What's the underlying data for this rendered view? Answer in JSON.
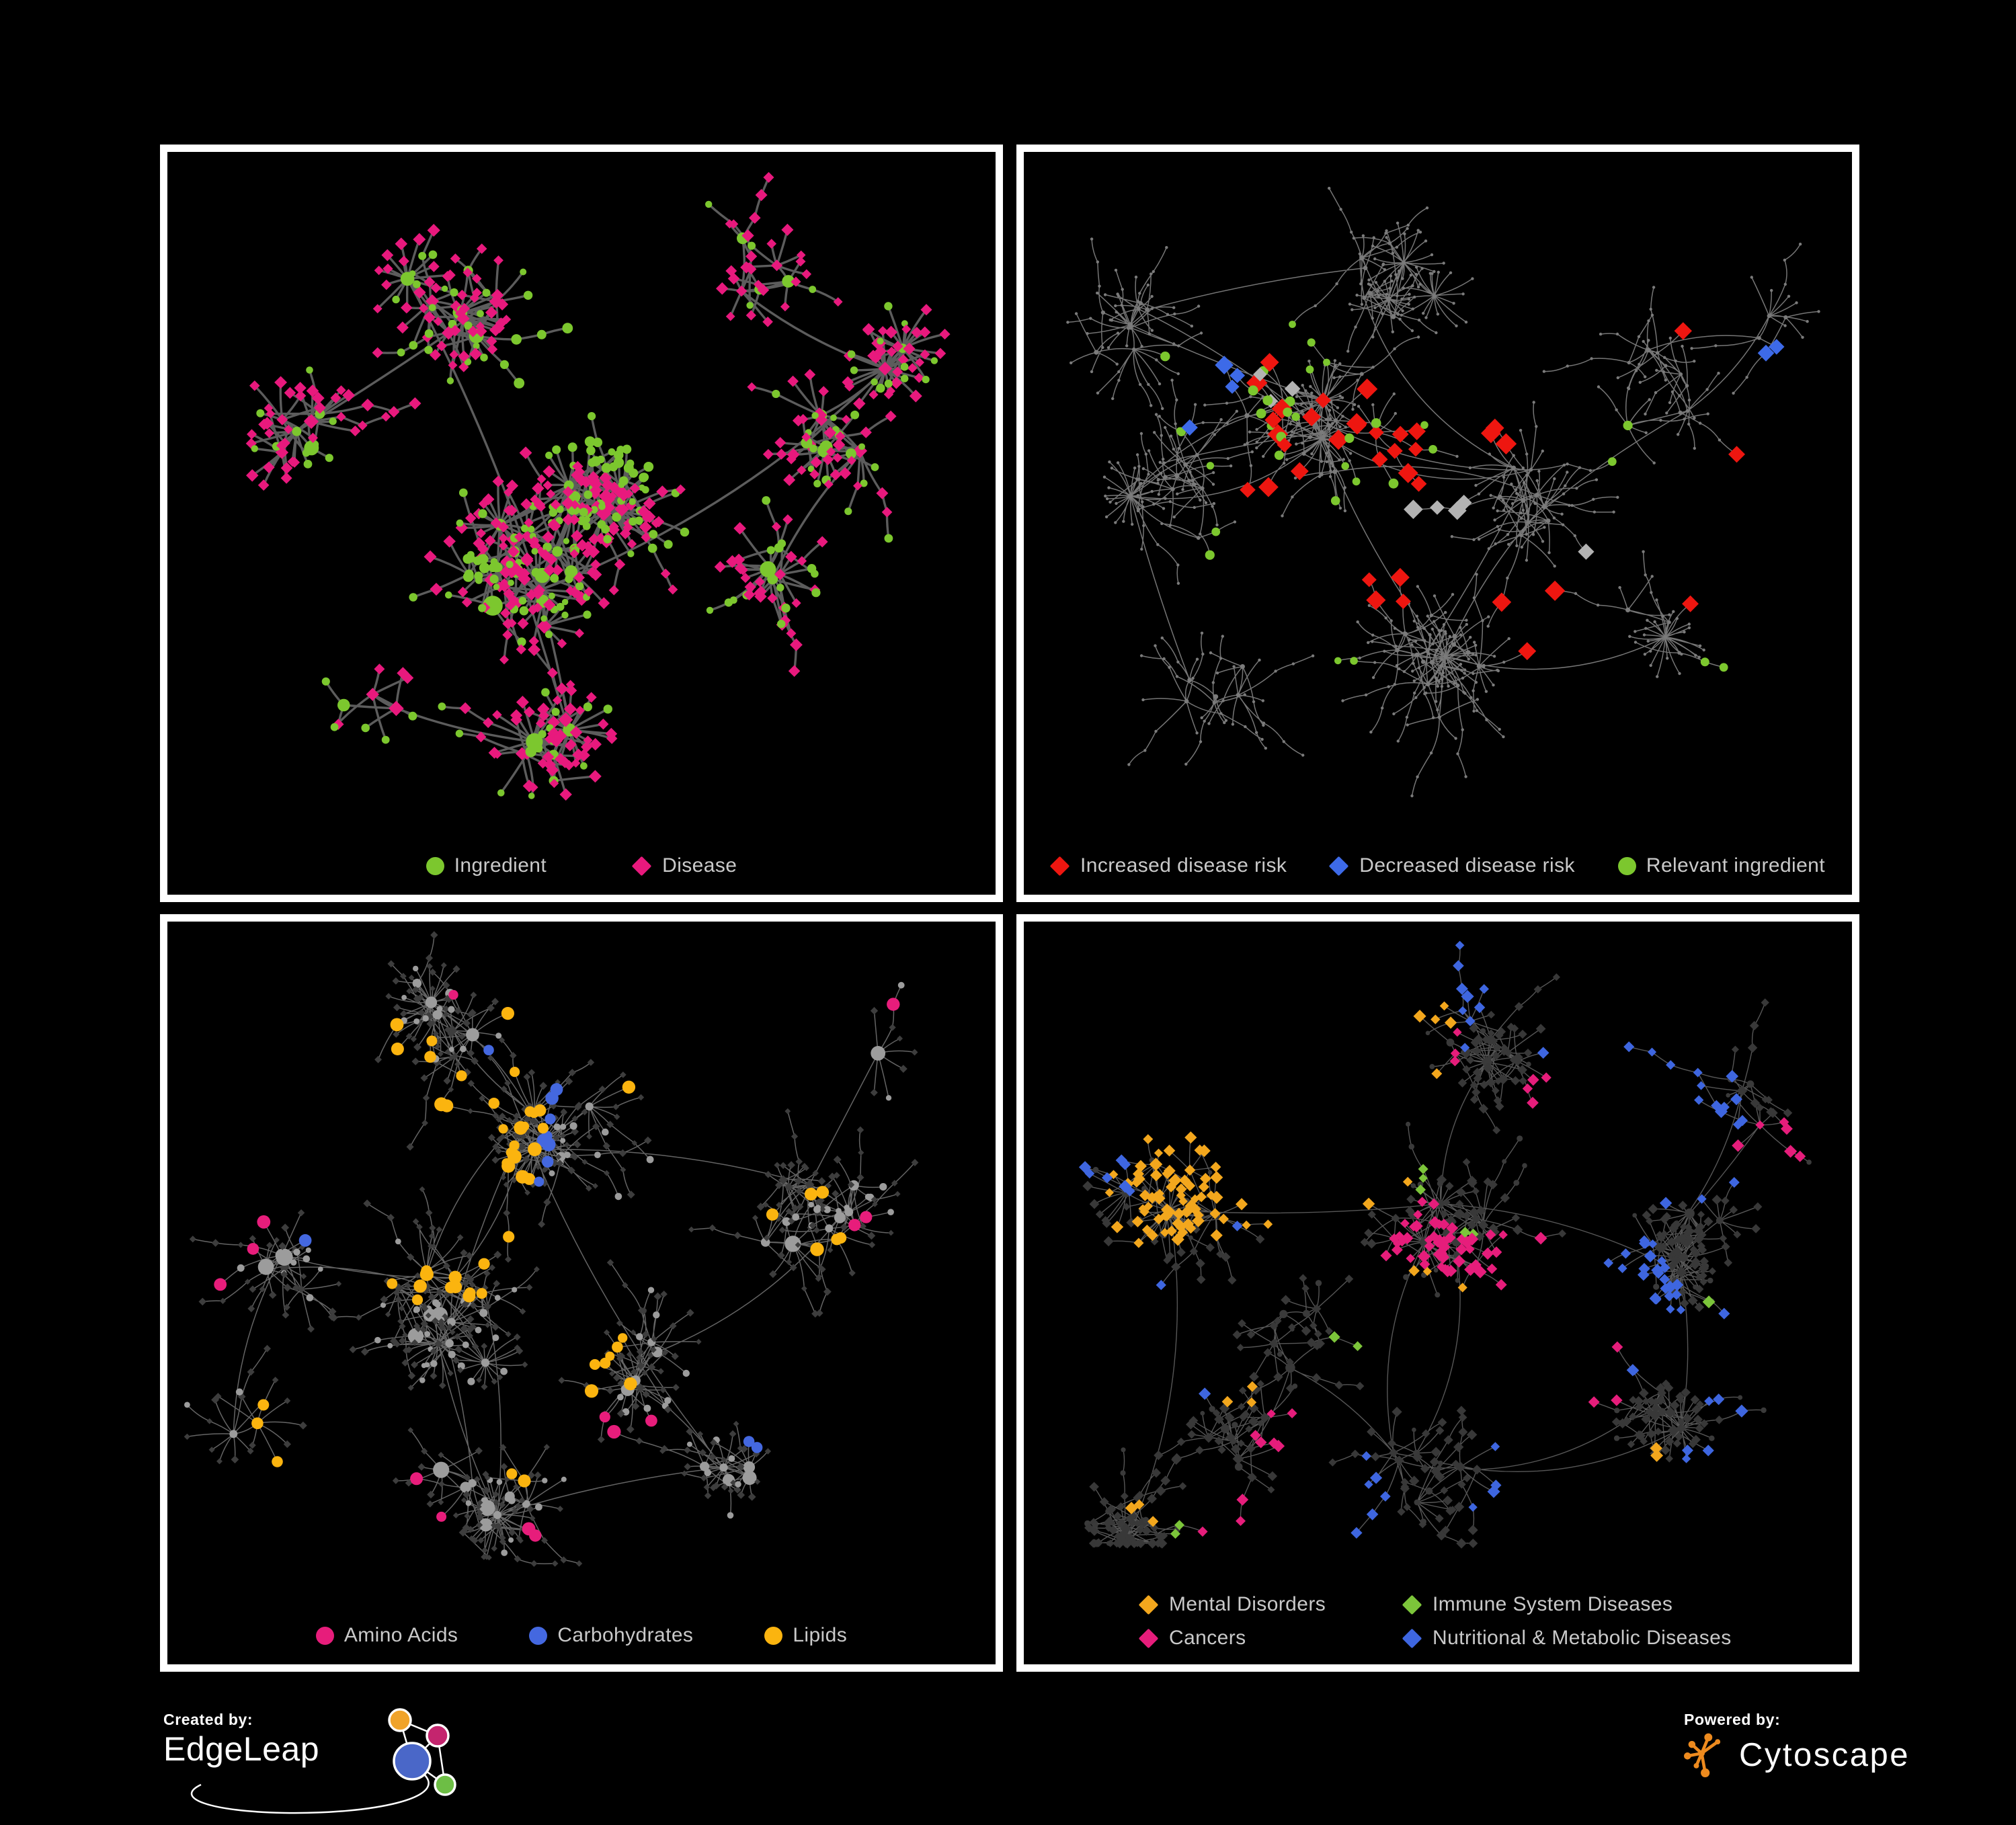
{
  "figure": {
    "background": "#000000",
    "panel_border_color": "#ffffff",
    "legend_text_color": "#C9C9C9"
  },
  "footer": {
    "created_by_label": "Created by:",
    "left_brand": "EdgeLeap",
    "powered_by_label": "Powered by:",
    "right_brand": "Cytoscape",
    "cytoscape_icon_color": "#ED8A1E",
    "edgeleap_logo_colors": [
      "#F0A32A",
      "#C4256E",
      "#4A67C8",
      "#6DBE45"
    ]
  },
  "chart_data": [
    {
      "id": "ingredient-disease-network",
      "type": "network",
      "position": "top-left",
      "legend": [
        {
          "label": "Ingredient",
          "shape": "circle",
          "color": "#7CC72E"
        },
        {
          "label": "Disease",
          "shape": "diamond",
          "color": "#E8197D"
        }
      ],
      "style": {
        "edge_color": "#646464",
        "edge_width": 3.4,
        "edge_opacity": 0.92,
        "curve": 0.13
      },
      "gen": {
        "seed": 101,
        "hubs": 88,
        "extra": 0.3,
        "leafMin": 2,
        "leafMax": 8,
        "leafR": 52,
        "chainProb": 0.1,
        "bursts": 7,
        "maxY": 958,
        "clusters": [
          [
            520,
            640,
            110,
            3
          ],
          [
            640,
            520,
            85,
            2
          ],
          [
            430,
            230,
            120,
            1.6
          ],
          [
            890,
            200,
            90,
            1
          ],
          [
            980,
            430,
            80,
            1
          ],
          [
            195,
            430,
            80,
            1
          ],
          [
            300,
            800,
            90,
            1
          ],
          [
            570,
            890,
            70,
            1
          ],
          [
            900,
            630,
            70,
            0.8
          ],
          [
            1100,
            300,
            60,
            0.6
          ]
        ]
      },
      "nodes": {
        "mode": "colored",
        "circle_color": "#7CC72E",
        "diamond_color": "#E8197D",
        "hub_circle_prob": 0.6,
        "leaf_circle_prob": 0.28,
        "hub_r": [
          7,
          15
        ],
        "leaf_r": 5.5,
        "hub_d": 9.5,
        "leaf_d": 8
      },
      "highlights": [
        {
          "target": "any",
          "shape": "circle",
          "color": "#7CC72E",
          "size": 6.5,
          "spots": [
            [
              640,
              330,
              55,
              22
            ],
            [
              470,
              620,
              50,
              16
            ],
            [
              700,
              390,
              35,
              8
            ]
          ]
        }
      ]
    },
    {
      "id": "disease-risk-network",
      "type": "network",
      "position": "top-right",
      "legend": [
        {
          "label": "Increased disease risk",
          "shape": "diamond",
          "color": "#EE1610"
        },
        {
          "label": "Decreased disease risk",
          "shape": "diamond",
          "color": "#3D6AE8"
        },
        {
          "label": "Relevant ingredient",
          "shape": "circle",
          "color": "#7CC72E"
        }
      ],
      "style": {
        "edge_color": "#8A8A8A",
        "edge_width": 1.5,
        "edge_opacity": 0.85,
        "curve": 0.3
      },
      "gen": {
        "seed": 202,
        "hubs": 95,
        "extra": 0.28,
        "leafMin": 2,
        "leafMax": 7,
        "leafR": 48,
        "chainProb": 0.42,
        "bursts": 8,
        "maxY": 958,
        "clusters": [
          [
            430,
            400,
            130,
            2.5
          ],
          [
            560,
            180,
            120,
            1.5
          ],
          [
            220,
            480,
            100,
            1
          ],
          [
            950,
            350,
            110,
            1.5
          ],
          [
            620,
            760,
            110,
            1.5
          ],
          [
            300,
            800,
            80,
            0.8
          ],
          [
            1100,
            280,
            70,
            0.7
          ],
          [
            950,
            700,
            90,
            1
          ],
          [
            750,
            520,
            90,
            1
          ],
          [
            150,
            250,
            70,
            0.6
          ]
        ]
      },
      "nodes": {
        "mode": "dots",
        "dot_color": "#7B7B7B",
        "hub_r": [
          2.6,
          3.8
        ],
        "leaf_r": 2.2
      },
      "highlights": [
        {
          "target": "any",
          "shape": "diamond",
          "color": "#EE1610",
          "size": 13,
          "spots": [
            [
              420,
              390,
              110,
              13
            ],
            [
              560,
              450,
              90,
              8
            ],
            [
              700,
              420,
              55,
              3
            ],
            [
              770,
              700,
              55,
              3
            ],
            [
              520,
              640,
              60,
              4
            ],
            [
              985,
              265,
              12,
              1
            ],
            [
              1060,
              560,
              45,
              2
            ],
            [
              340,
              520,
              30,
              2
            ]
          ]
        },
        {
          "target": "any",
          "shape": "diamond",
          "color": "#3D6AE8",
          "size": 13,
          "spots": [
            [
              310,
              330,
              40,
              3
            ],
            [
              1095,
              300,
              28,
              2
            ],
            [
              240,
              395,
              18,
              1
            ]
          ]
        },
        {
          "target": "any",
          "shape": "diamond",
          "color": "#B3B3B3",
          "size": 12,
          "spots": [
            [
              365,
              350,
              55,
              3
            ],
            [
              600,
              520,
              80,
              4
            ],
            [
              830,
              625,
              35,
              1
            ]
          ]
        },
        {
          "target": "any",
          "shape": "circle",
          "color": "#7CC72E",
          "size": 6.2,
          "spots": [
            [
              380,
              360,
              115,
              15
            ],
            [
              540,
              480,
              95,
              8
            ],
            [
              250,
              420,
              60,
              3
            ],
            [
              880,
              420,
              35,
              2
            ],
            [
              1140,
              880,
              60,
              2
            ],
            [
              460,
              760,
              45,
              2
            ],
            [
              300,
              640,
              40,
              2
            ],
            [
              200,
              300,
              30,
              1
            ]
          ]
        }
      ]
    },
    {
      "id": "ingredient-groups-network",
      "type": "network",
      "position": "bottom-left",
      "legend": [
        {
          "label": "Amino Acids",
          "shape": "circle",
          "color": "#E71D7B"
        },
        {
          "label": "Carbohydrates",
          "shape": "circle",
          "color": "#4468E0"
        },
        {
          "label": "Lipids",
          "shape": "circle",
          "color": "#FBB40F"
        }
      ],
      "style": {
        "edge_color": "#A6A6A6",
        "edge_width": 1.5,
        "edge_opacity": 0.6,
        "curve": 0.22
      },
      "gen": {
        "seed": 303,
        "hubs": 88,
        "extra": 0.34,
        "leafMin": 2,
        "leafMax": 8,
        "leafR": 50,
        "chainProb": 0.16,
        "bursts": 7,
        "maxY": 955,
        "clusters": [
          [
            420,
            560,
            120,
            2.5
          ],
          [
            560,
            330,
            90,
            1.8
          ],
          [
            380,
            150,
            110,
            1
          ],
          [
            170,
            520,
            70,
            0.8
          ],
          [
            700,
            650,
            60,
            1
          ],
          [
            950,
            420,
            90,
            1.2
          ],
          [
            480,
            880,
            100,
            1.2
          ],
          [
            1050,
            210,
            80,
            0.7
          ],
          [
            820,
            820,
            70,
            0.7
          ],
          [
            120,
            760,
            60,
            0.5
          ]
        ]
      },
      "nodes": {
        "mode": "colored",
        "circle_color": "#9C9C9C",
        "diamond_color": "#3D3D3D",
        "hub_circle_prob": 0.8,
        "leaf_circle_prob": 0.22,
        "hub_r": [
          6,
          13
        ],
        "leaf_r": 4.5,
        "hub_d": 6,
        "leaf_d": 5
      },
      "highlights": [
        {
          "target": "circle",
          "shape": "circle",
          "color": "#FBB40F",
          "size": 8.5,
          "spots": [
            [
              500,
              300,
              70,
              20
            ],
            [
              430,
              530,
              90,
              13
            ],
            [
              610,
              620,
              45,
              7
            ],
            [
              360,
              180,
              60,
              4
            ],
            [
              880,
              330,
              60,
              3
            ],
            [
              240,
              760,
              50,
              3
            ],
            [
              520,
              845,
              40,
              2
            ],
            [
              1090,
              620,
              50,
              3
            ],
            [
              680,
              90,
              40,
              2
            ]
          ]
        },
        {
          "target": "circle",
          "shape": "circle",
          "color": "#E71D7B",
          "size": 8.5,
          "spots": [
            [
              120,
              420,
              40,
              2
            ],
            [
              90,
              600,
              30,
              1
            ],
            [
              300,
              885,
              55,
              2
            ],
            [
              700,
              790,
              50,
              3
            ],
            [
              1020,
              480,
              60,
              2
            ],
            [
              470,
              60,
              30,
              1
            ],
            [
              1130,
              165,
              40,
              1
            ],
            [
              660,
              950,
              40,
              2
            ]
          ]
        },
        {
          "target": "circle",
          "shape": "circle",
          "color": "#4468E0",
          "size": 8.5,
          "spots": [
            [
              480,
              330,
              45,
              6
            ],
            [
              545,
              270,
              30,
              3
            ],
            [
              1030,
              700,
              40,
              2
            ],
            [
              160,
              290,
              20,
              1
            ]
          ]
        }
      ]
    },
    {
      "id": "disease-groups-network",
      "type": "network",
      "position": "bottom-right",
      "legend": [
        {
          "label": "Mental Disorders",
          "shape": "diamond",
          "color": "#F3A71D"
        },
        {
          "label": "Immune System Diseases",
          "shape": "diamond",
          "color": "#7CC53A"
        },
        {
          "label": "Cancers",
          "shape": "diamond",
          "color": "#E61D7B"
        },
        {
          "label": "Nutritional & Metabolic Diseases",
          "shape": "diamond",
          "color": "#3E66E0"
        }
      ],
      "legend_layout": "grid",
      "style": {
        "edge_color": "#8F8F8F",
        "edge_width": 1.4,
        "edge_opacity": 0.6,
        "curve": 0.22
      },
      "gen": {
        "seed": 404,
        "hubs": 95,
        "extra": 0.3,
        "leafMin": 2,
        "leafMax": 8,
        "leafR": 46,
        "chainProb": 0.15,
        "bursts": 8,
        "maxY": 925,
        "clusters": [
          [
            220,
            430,
            100,
            1.8
          ],
          [
            620,
            450,
            120,
            2.5
          ],
          [
            650,
            190,
            110,
            1.2
          ],
          [
            1000,
            480,
            100,
            1.5
          ],
          [
            1050,
            240,
            80,
            0.8
          ],
          [
            600,
            800,
            110,
            1.3
          ],
          [
            320,
            780,
            80,
            0.8
          ],
          [
            950,
            750,
            80,
            0.8
          ],
          [
            420,
            600,
            90,
            1
          ],
          [
            150,
            900,
            60,
            0.4
          ]
        ]
      },
      "nodes": {
        "mode": "colored",
        "circle_color": "#3A3A3A",
        "diamond_color": "#383838",
        "hub_circle_prob": 0.45,
        "leaf_circle_prob": 0.1,
        "hub_r": [
          4.5,
          8
        ],
        "leaf_r": 3.8,
        "hub_d": 7.5,
        "leaf_d": 6.5
      },
      "highlights": [
        {
          "target": "diamond",
          "shape": "diamond",
          "color": "#F3A71D",
          "size": 8,
          "spots": [
            [
              210,
              420,
              95,
              62
            ],
            [
              330,
              300,
              60,
              12
            ],
            [
              450,
              250,
              40,
              5
            ],
            [
              600,
              560,
              30,
              3
            ],
            [
              330,
              700,
              40,
              3
            ],
            [
              950,
              790,
              28,
              2
            ],
            [
              185,
              880,
              40,
              3
            ],
            [
              560,
              120,
              30,
              2
            ]
          ]
        },
        {
          "target": "diamond",
          "shape": "diamond",
          "color": "#E61D7B",
          "size": 8,
          "spots": [
            [
              600,
              480,
              80,
              40
            ],
            [
              700,
              560,
              50,
              12
            ],
            [
              380,
              760,
              50,
              6
            ],
            [
              820,
              300,
              42,
              4
            ],
            [
              1120,
              330,
              50,
              6
            ],
            [
              285,
              900,
              40,
              3
            ],
            [
              480,
              180,
              40,
              3
            ],
            [
              840,
              680,
              35,
              3
            ]
          ]
        },
        {
          "target": "diamond",
          "shape": "diamond",
          "color": "#3E66E0",
          "size": 8,
          "spots": [
            [
              900,
              560,
              70,
              26
            ],
            [
              1000,
              300,
              70,
              13
            ],
            [
              380,
              150,
              70,
              8
            ],
            [
              250,
              180,
              50,
              5
            ],
            [
              600,
              100,
              40,
              4
            ],
            [
              480,
              860,
              60,
              6
            ],
            [
              760,
              860,
              40,
              4
            ],
            [
              1120,
              680,
              40,
              4
            ],
            [
              150,
              650,
              28,
              2
            ],
            [
              900,
              140,
              40,
              4
            ],
            [
              1060,
              900,
              35,
              3
            ]
          ]
        },
        {
          "target": "diamond",
          "shape": "diamond",
          "color": "#7CC53A",
          "size": 8,
          "spots": [
            [
              560,
              330,
              60,
              3
            ],
            [
              620,
              500,
              40,
              2
            ],
            [
              300,
              940,
              22,
              2
            ],
            [
              1080,
              590,
              20,
              1
            ],
            [
              500,
              640,
              28,
              2
            ]
          ]
        }
      ]
    }
  ]
}
